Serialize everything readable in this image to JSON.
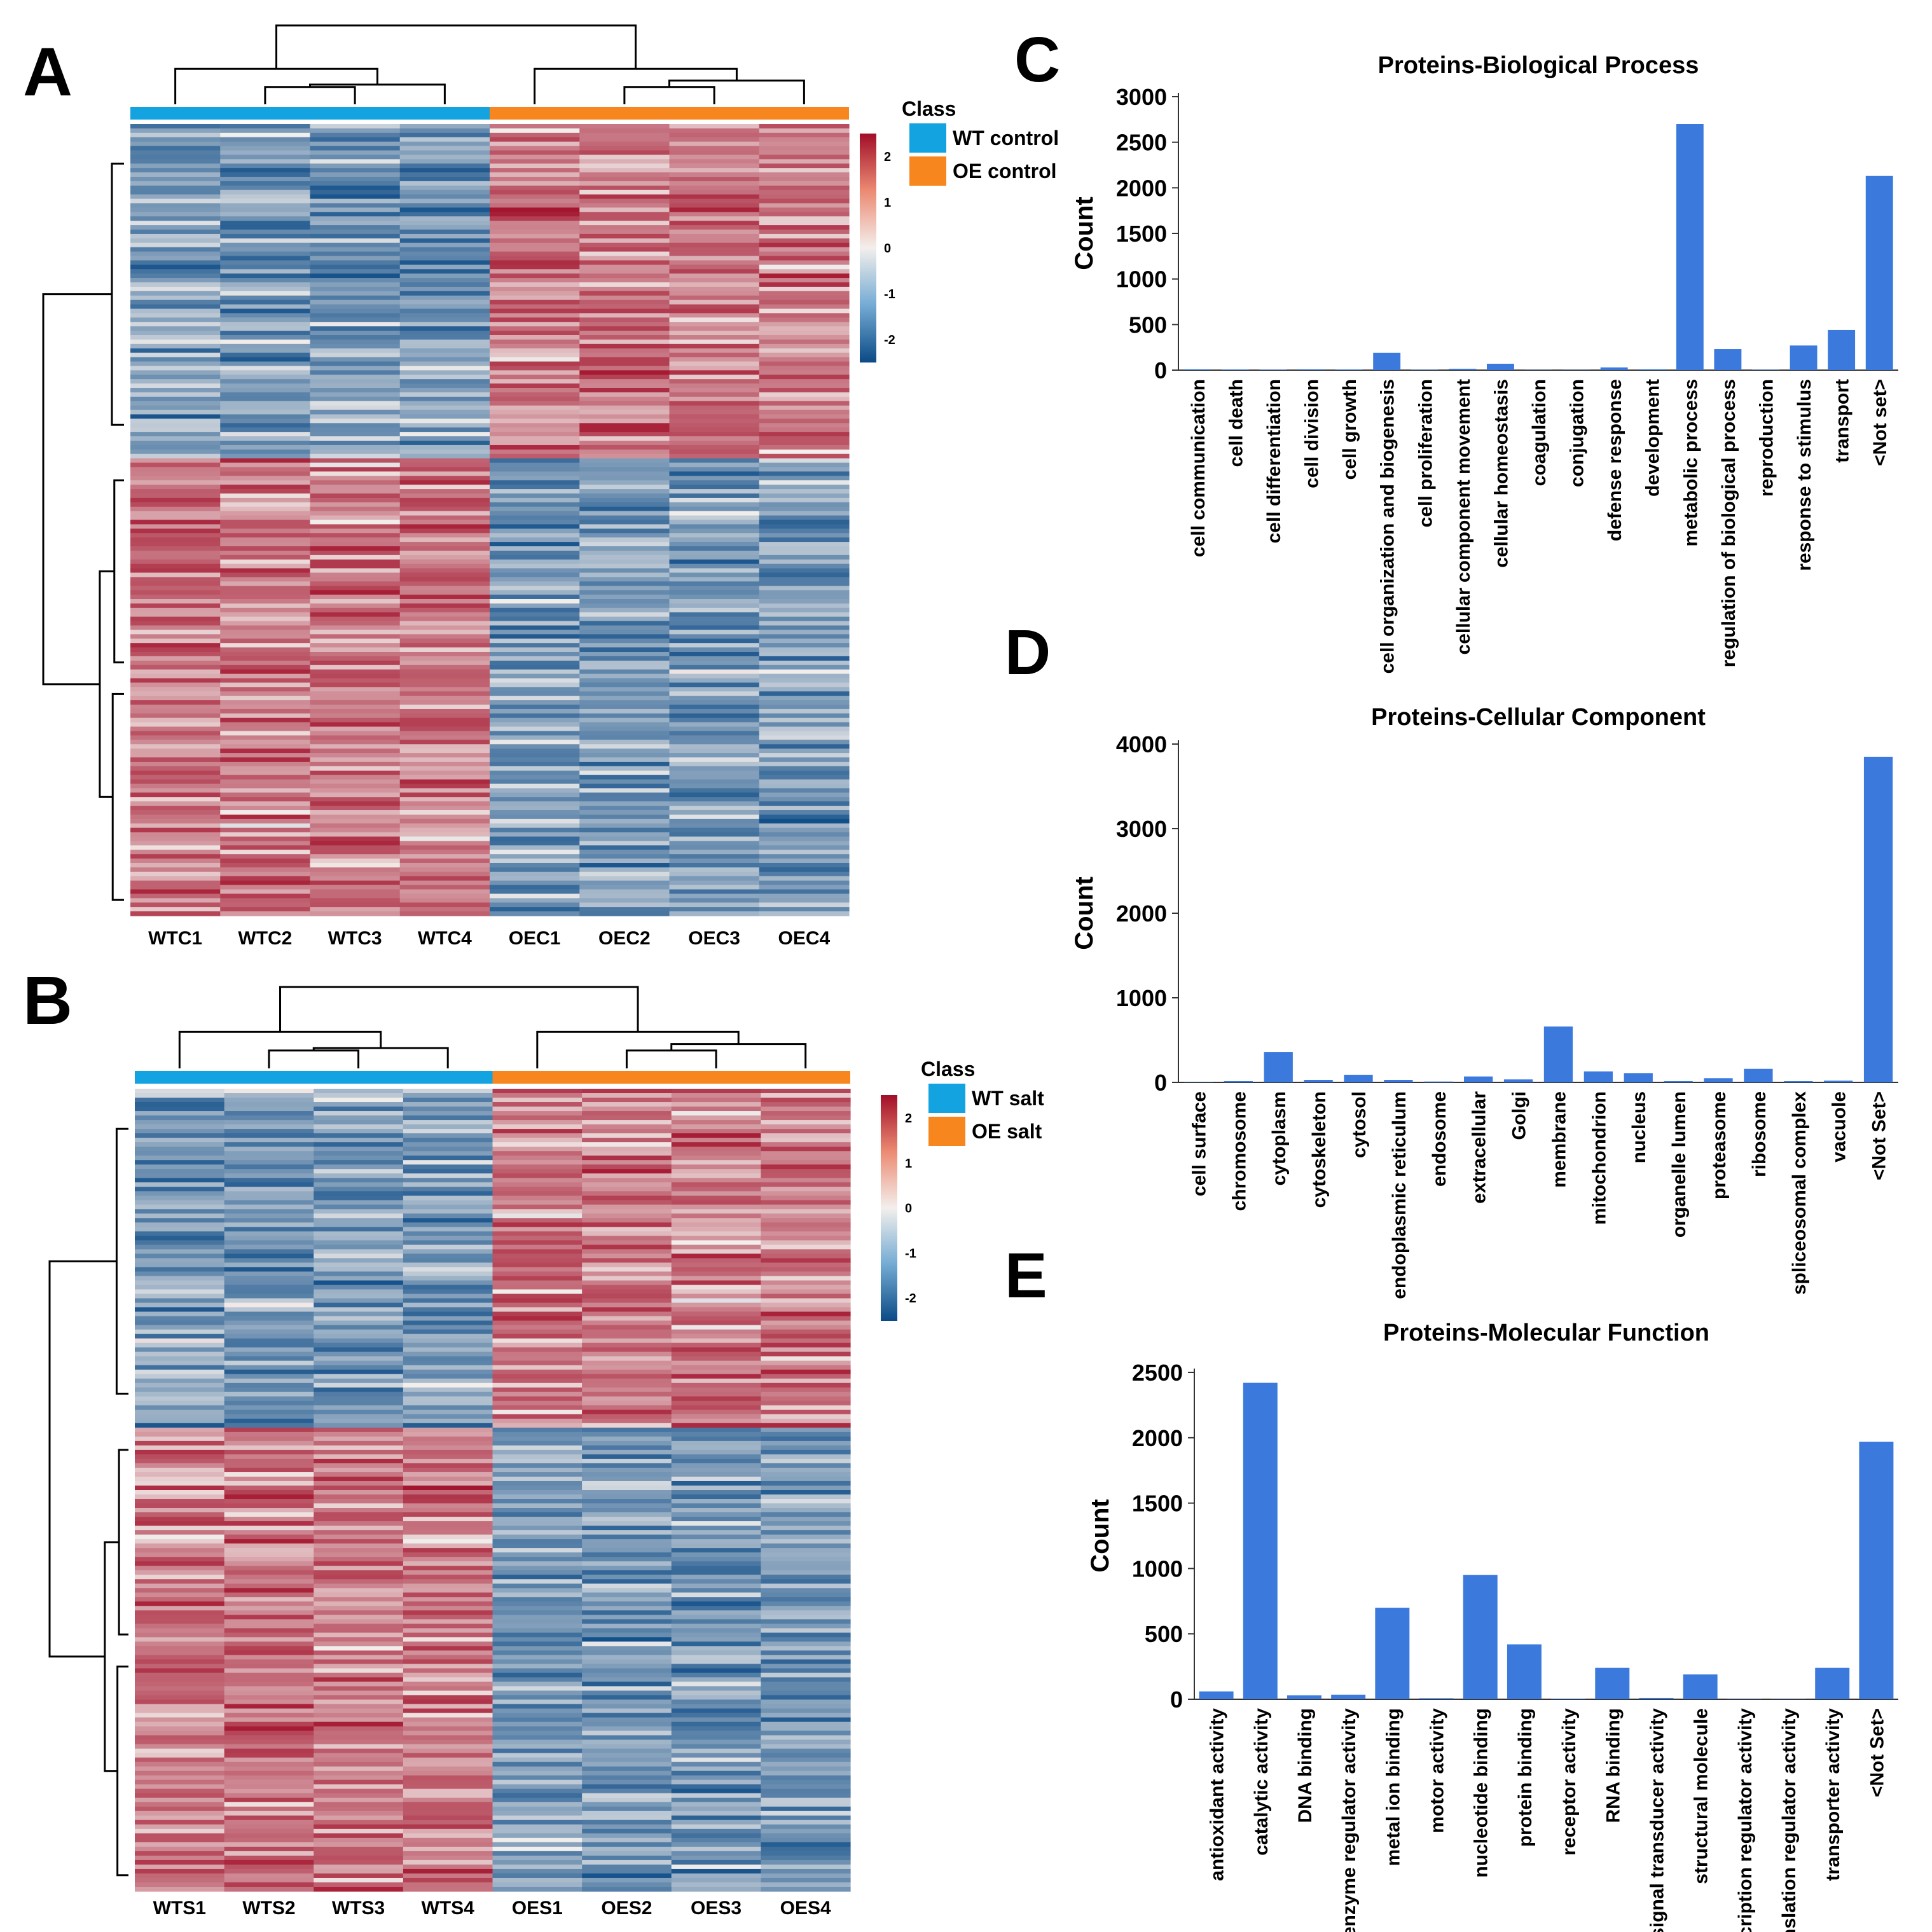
{
  "panels": {
    "A": "A",
    "B": "B",
    "C": "C",
    "D": "D",
    "E": "E"
  },
  "heatmaps": [
    {
      "id": "A",
      "legend_title": "Class",
      "classes": [
        {
          "name": "WT control",
          "color": "#12a3e0"
        },
        {
          "name": "OE control",
          "color": "#f7861f"
        }
      ],
      "samples": [
        "WTC1",
        "WTC2",
        "WTC3",
        "WTC4",
        "OEC1",
        "OEC2",
        "OEC3",
        "OEC4"
      ],
      "scale_ticks": [
        "2",
        "1",
        "0",
        "-1",
        "-2"
      ],
      "seed": 17
    },
    {
      "id": "B",
      "legend_title": "Class",
      "classes": [
        {
          "name": "WT salt",
          "color": "#12a3e0"
        },
        {
          "name": "OE salt",
          "color": "#f7861f"
        }
      ],
      "samples": [
        "WTS1",
        "WTS2",
        "WTS3",
        "WTS4",
        "OES1",
        "OES2",
        "OES3",
        "OES4"
      ],
      "scale_ticks": [
        "2",
        "1",
        "0",
        "-1",
        "-2"
      ],
      "seed": 53
    }
  ],
  "colors": {
    "bar": "#3b79dd",
    "heat_high": "#a10e28",
    "heat_mid": "#f3efec",
    "heat_low": "#0b4a86"
  },
  "chart_data": [
    {
      "type": "bar",
      "title": "Proteins-Biological Process",
      "ylabel": "Count",
      "ylim": [
        0,
        3000
      ],
      "yticks": [
        0,
        500,
        1000,
        1500,
        2000,
        2500,
        3000
      ],
      "categories": [
        "cell communication",
        "cell death",
        "cell differentiation",
        "cell division",
        "cell growth",
        "cell organization and biogenesis",
        "cell proliferation",
        "cellular component movement",
        "cellular homeostasis",
        "coagulation",
        "conjugation",
        "defense response",
        "development",
        "metabolic process",
        "regulation of biological process",
        "reproduction",
        "response to stimulus",
        "transport",
        "<Not set>"
      ],
      "values": [
        10,
        8,
        6,
        10,
        8,
        190,
        5,
        15,
        70,
        3,
        3,
        30,
        10,
        2700,
        230,
        5,
        270,
        440,
        2130
      ]
    },
    {
      "type": "bar",
      "title": "Proteins-Cellular Component",
      "ylabel": "Count",
      "ylim": [
        0,
        4000
      ],
      "yticks": [
        0,
        1000,
        2000,
        3000,
        4000
      ],
      "categories": [
        "cell surface",
        "chromosome",
        "cytoplasm",
        "cytoskeleton",
        "cytosol",
        "endoplasmic reticulum",
        "endosome",
        "extracellular",
        "Golgi",
        "membrane",
        "mitochondrion",
        "nucleus",
        "organelle lumen",
        "proteasome",
        "ribosome",
        "spliceosomal complex",
        "vacuole",
        "<Not Set>"
      ],
      "values": [
        5,
        15,
        360,
        30,
        90,
        30,
        10,
        70,
        35,
        660,
        130,
        110,
        15,
        50,
        160,
        15,
        20,
        3850
      ]
    },
    {
      "type": "bar",
      "title": "Proteins-Molecular Function",
      "ylabel": "Count",
      "ylim": [
        0,
        2500
      ],
      "yticks": [
        0,
        500,
        1000,
        1500,
        2000,
        2500
      ],
      "categories": [
        "antioxidant activity",
        "catalytic activity",
        "DNA binding",
        "enzyme regulator activity",
        "metal ion binding",
        "motor activity",
        "nucleotide binding",
        "protein binding",
        "receptor activity",
        "RNA binding",
        "signal transducer activity",
        "structural molecule",
        "transcription regulator activity",
        "translation regulator activity",
        "transporter activity",
        "<Not Set>"
      ],
      "values": [
        60,
        2420,
        30,
        35,
        700,
        8,
        950,
        420,
        5,
        240,
        10,
        190,
        3,
        3,
        240,
        1970
      ]
    }
  ]
}
